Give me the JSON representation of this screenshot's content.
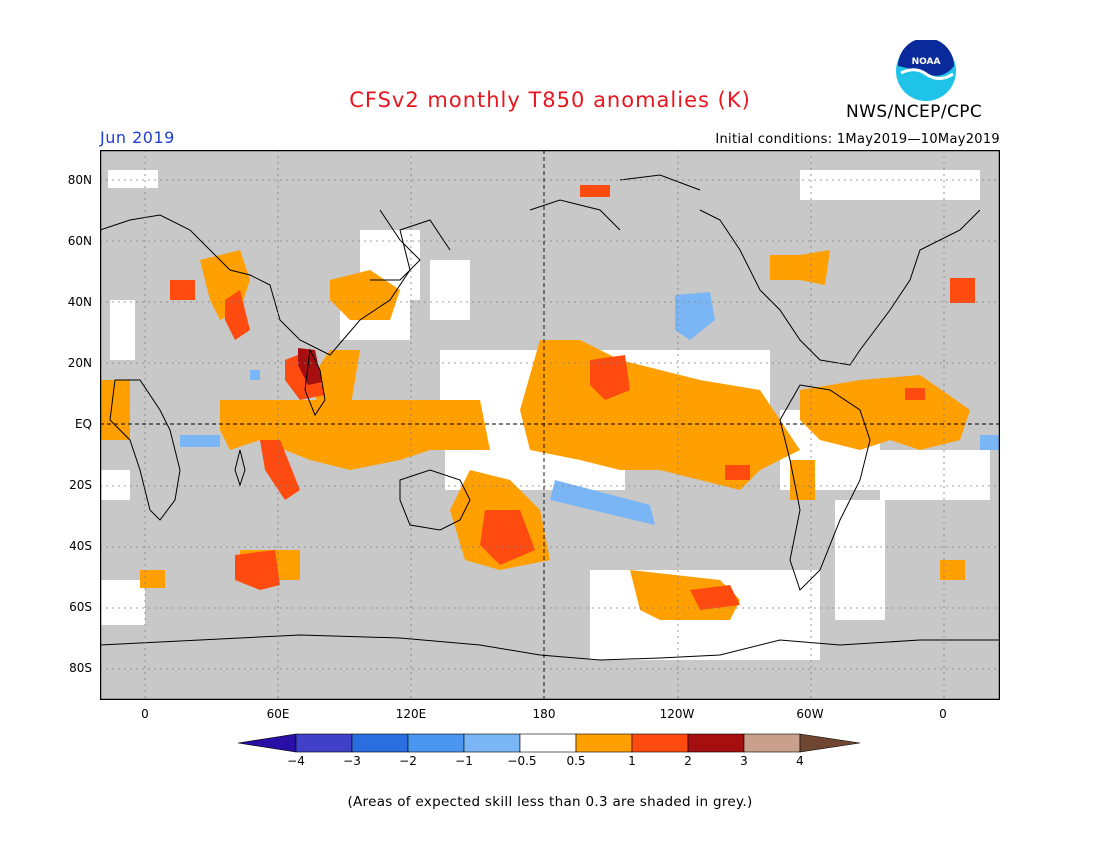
{
  "header": {
    "title": "CFSv2 monthly T850 anomalies (K)",
    "month": "Jun 2019",
    "initial_conditions": "Initial conditions: 1May2019—10May2019",
    "org": "NWS/NCEP/CPC",
    "logo_text": "NOAA"
  },
  "map": {
    "lat_labels": [
      "80N",
      "60N",
      "40N",
      "20N",
      "EQ",
      "20S",
      "40S",
      "60S",
      "80S"
    ],
    "lon_labels": [
      "0",
      "60E",
      "120E",
      "180",
      "120W",
      "60W",
      "0"
    ],
    "skill_mask_color": "#c8c8c8",
    "background_color": "#ffffff"
  },
  "colorbar": {
    "tick_labels": [
      "−4",
      "−3",
      "−2",
      "−1",
      "−0.5",
      "0.5",
      "1",
      "2",
      "3",
      "4"
    ],
    "colors": [
      "#2a0fa6",
      "#4040c8",
      "#2a6ee0",
      "#4a96f0",
      "#7ab6f5",
      "#ffffff",
      "#ff9f00",
      "#ff4b10",
      "#a50f0f",
      "#c8a08c",
      "#6e4632"
    ]
  },
  "footnote": "(Areas of expected skill less than 0.3 are shaded in grey.)"
}
